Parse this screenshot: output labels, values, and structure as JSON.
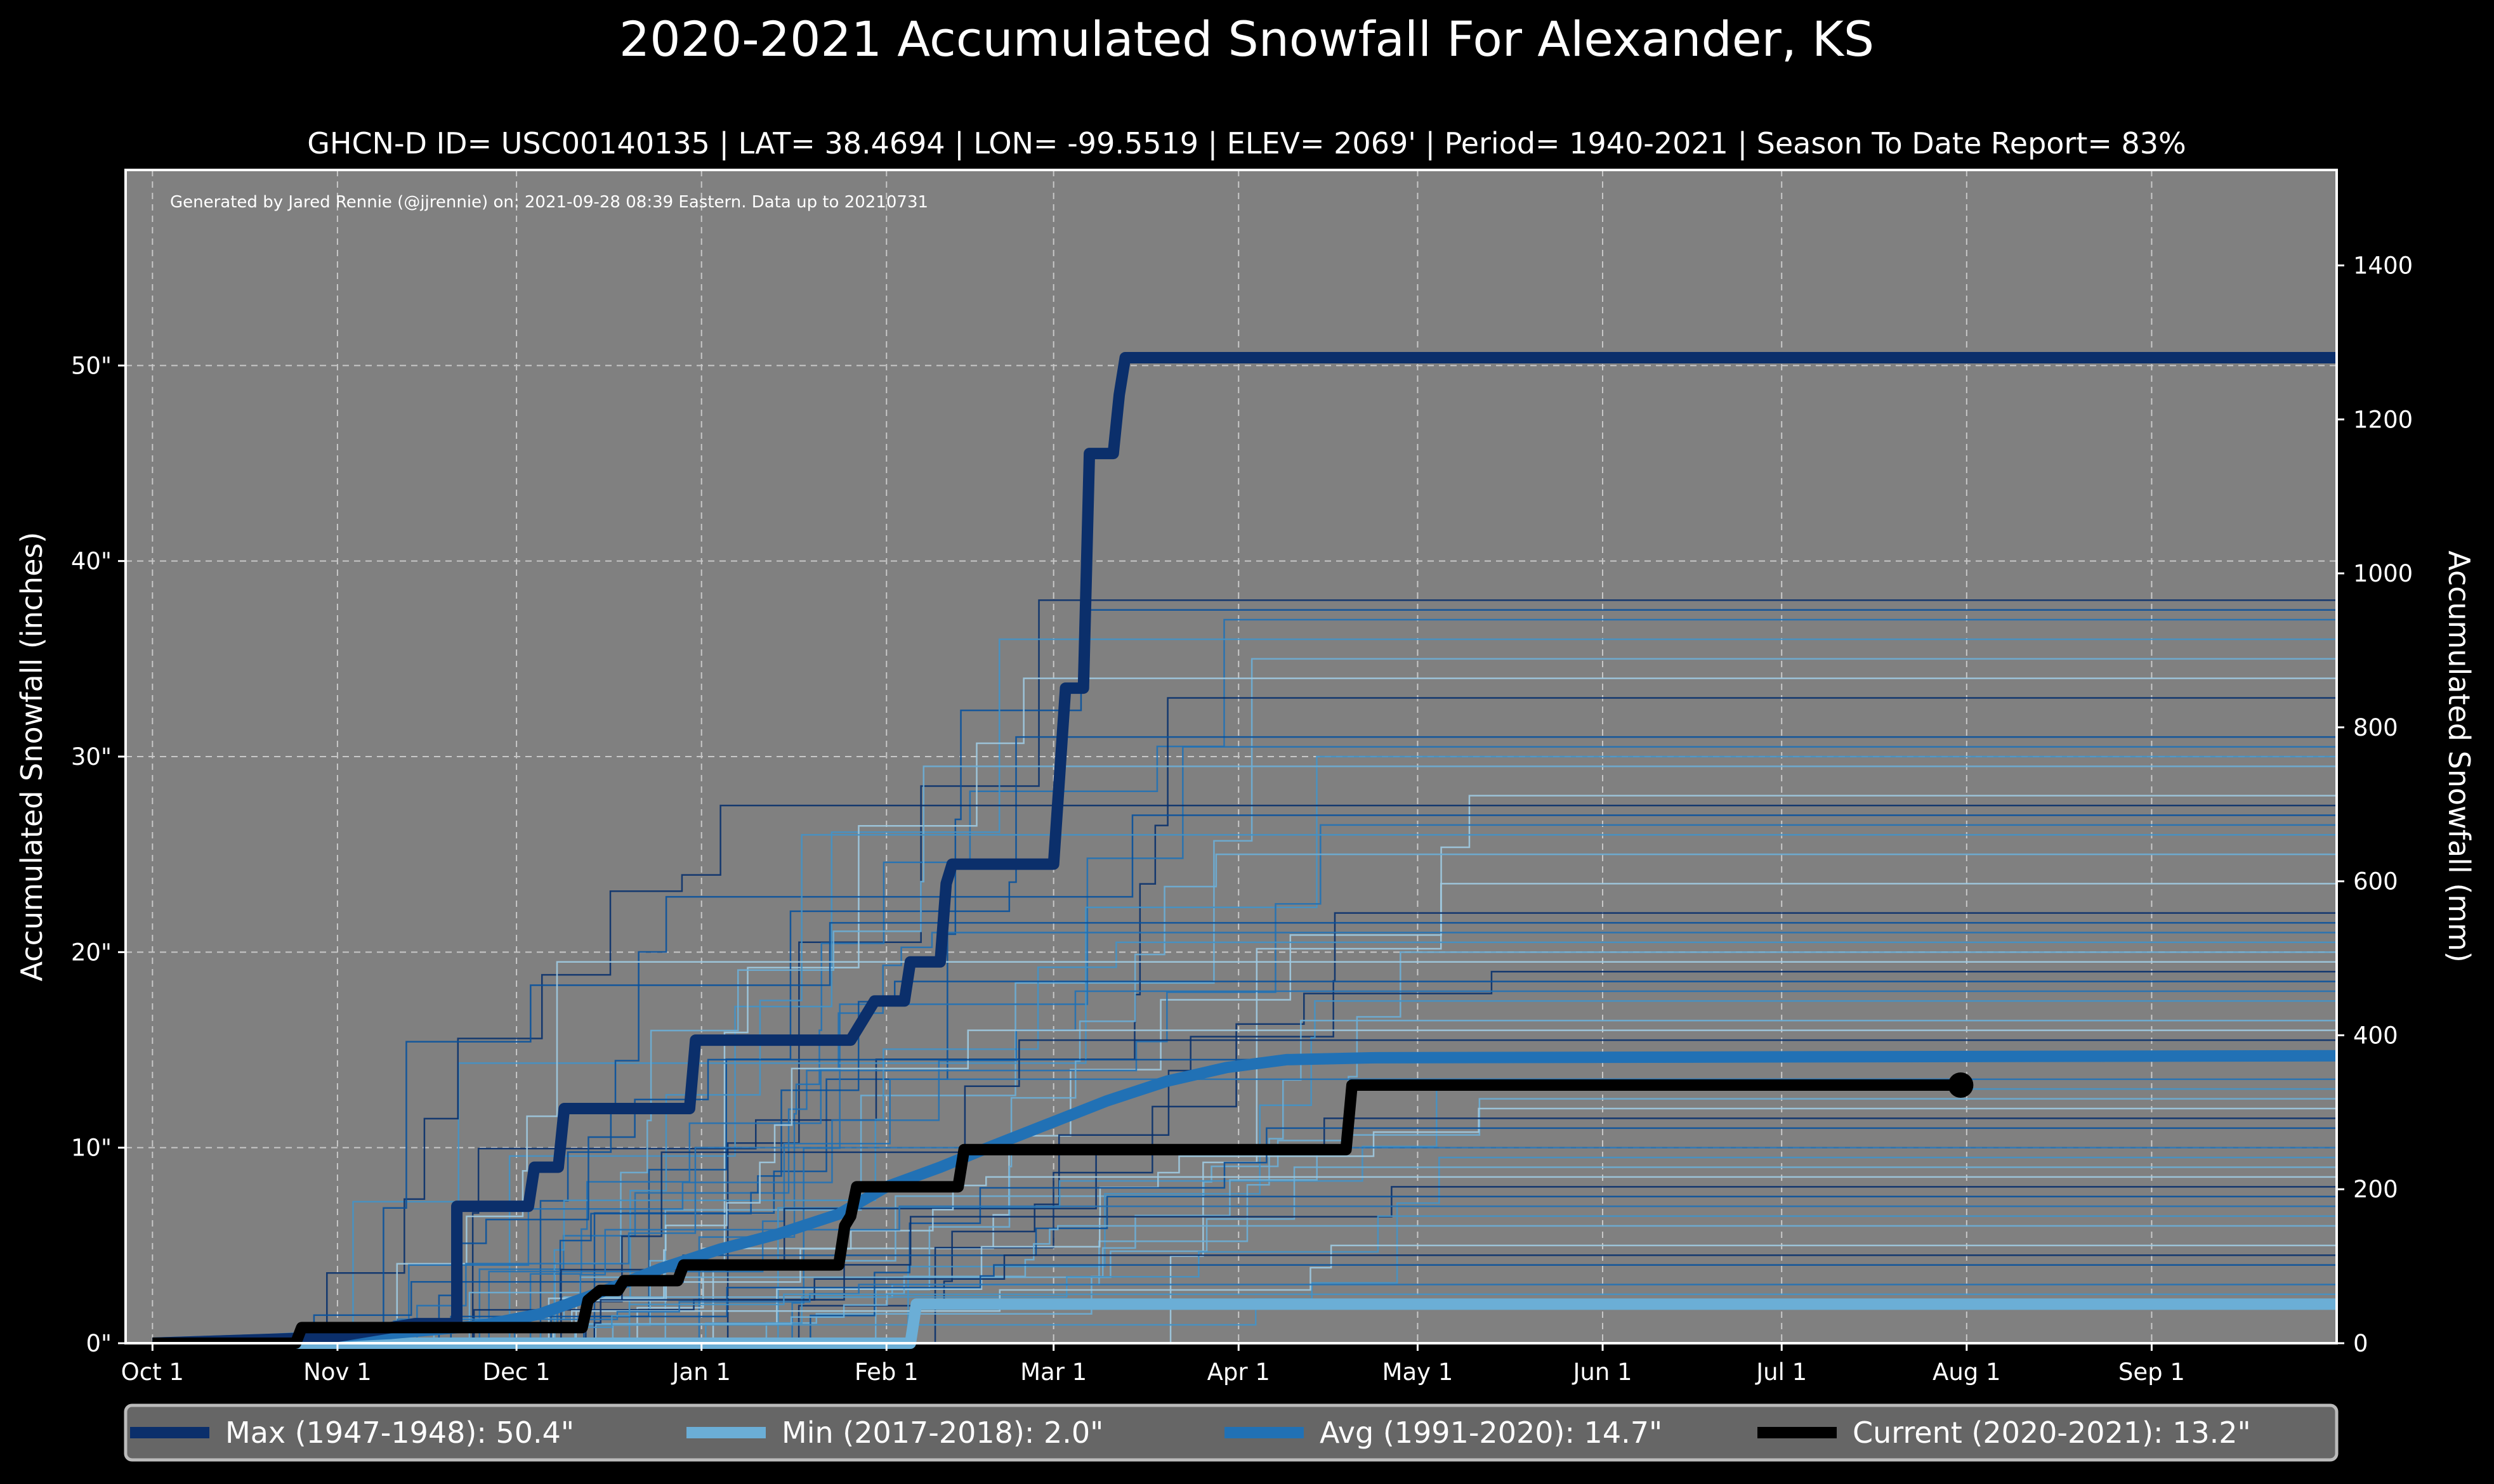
{
  "chart_data": {
    "type": "line",
    "title": "2020-2021 Accumulated Snowfall For Alexander, KS",
    "subtitle": "GHCN-D ID= USC00140135 | LAT= 38.4694 | LON= -99.5519 | ELEV= 2069' | Period= 1940-2021 | Season To Date Report= 83%",
    "annotation": "Generated by Jared Rennie (@jjrennie) on: 2021-09-28 08:39 Eastern. Data up to 20210731",
    "ylabel": "Accumulated Snowfall (inches)",
    "ylabel_right": "Accumulated Snowfall (mm)",
    "xlim_days": [
      -4.5,
      366
    ],
    "ylim": [
      0,
      60
    ],
    "ylim_right_mm": [
      0,
      1524
    ],
    "grid": true,
    "x_ticks": [
      {
        "day": 0,
        "label": "Oct 1"
      },
      {
        "day": 31,
        "label": "Nov 1"
      },
      {
        "day": 61,
        "label": "Dec 1"
      },
      {
        "day": 92,
        "label": "Jan 1"
      },
      {
        "day": 123,
        "label": "Feb 1"
      },
      {
        "day": 151,
        "label": "Mar 1"
      },
      {
        "day": 182,
        "label": "Apr 1"
      },
      {
        "day": 212,
        "label": "May 1"
      },
      {
        "day": 243,
        "label": "Jun 1"
      },
      {
        "day": 273,
        "label": "Jul 1"
      },
      {
        "day": 304,
        "label": "Aug 1"
      },
      {
        "day": 335,
        "label": "Sep 1"
      }
    ],
    "y_ticks": [
      {
        "value": 0,
        "label": "0\""
      },
      {
        "value": 10,
        "label": "10\""
      },
      {
        "value": 20,
        "label": "20\""
      },
      {
        "value": 30,
        "label": "30\""
      },
      {
        "value": 40,
        "label": "40\""
      },
      {
        "value": 50,
        "label": "50\""
      }
    ],
    "y_ticks_right": [
      {
        "value": 0,
        "label": "0"
      },
      {
        "value": 200,
        "label": "200"
      },
      {
        "value": 400,
        "label": "400"
      },
      {
        "value": 600,
        "label": "600"
      },
      {
        "value": 800,
        "label": "800"
      },
      {
        "value": 1000,
        "label": "1000"
      },
      {
        "value": 1200,
        "label": "1200"
      },
      {
        "value": 1400,
        "label": "1400"
      }
    ],
    "series": [
      {
        "name": "Max",
        "legend": "Max (1947-1948):   50.4\"",
        "color": "#0b2f6b",
        "width": 18,
        "points": [
          [
            0,
            0
          ],
          [
            30,
            0.3
          ],
          [
            44,
            1
          ],
          [
            51,
            1
          ],
          [
            51,
            7
          ],
          [
            63,
            7
          ],
          [
            64,
            9
          ],
          [
            68,
            9
          ],
          [
            69,
            12
          ],
          [
            90,
            12
          ],
          [
            91,
            15.5
          ],
          [
            117,
            15.5
          ],
          [
            119,
            16.5
          ],
          [
            121,
            17.5
          ],
          [
            126,
            17.5
          ],
          [
            127,
            19.5
          ],
          [
            132,
            19.5
          ],
          [
            133,
            23.5
          ],
          [
            134,
            24.5
          ],
          [
            151,
            24.5
          ],
          [
            152,
            29
          ],
          [
            153,
            33.5
          ],
          [
            156,
            33.5
          ],
          [
            157,
            45.5
          ],
          [
            161,
            45.5
          ],
          [
            162,
            48.5
          ],
          [
            163,
            50.4
          ],
          [
            366,
            50.4
          ]
        ]
      },
      {
        "name": "Min",
        "legend": "Min (2017-2018):    2.0\"",
        "color": "#6baed6",
        "width": 18,
        "points": [
          [
            0,
            0
          ],
          [
            127,
            0
          ],
          [
            128,
            2.0
          ],
          [
            366,
            2.0
          ]
        ]
      },
      {
        "name": "Avg",
        "legend": "Avg (1991-2020):   14.7\"",
        "color": "#2171b5",
        "width": 18,
        "points": [
          [
            0,
            0
          ],
          [
            20,
            0.2
          ],
          [
            40,
            0.5
          ],
          [
            55,
            0.9
          ],
          [
            65,
            1.5
          ],
          [
            75,
            2.6
          ],
          [
            85,
            3.8
          ],
          [
            95,
            4.8
          ],
          [
            105,
            5.6
          ],
          [
            115,
            6.6
          ],
          [
            123,
            8
          ],
          [
            132,
            9
          ],
          [
            140,
            10
          ],
          [
            150,
            11.2
          ],
          [
            160,
            12.4
          ],
          [
            170,
            13.4
          ],
          [
            180,
            14.1
          ],
          [
            190,
            14.5
          ],
          [
            205,
            14.6
          ],
          [
            366,
            14.7
          ]
        ]
      },
      {
        "name": "Current",
        "legend": "Current (2020-2021):   13.2\"",
        "color": "#000000",
        "width": 18,
        "points": [
          [
            0,
            0
          ],
          [
            24,
            0
          ],
          [
            25,
            0.8
          ],
          [
            72,
            0.8
          ],
          [
            73,
            2.2
          ],
          [
            75,
            2.7
          ],
          [
            78,
            2.7
          ],
          [
            79,
            3.2
          ],
          [
            88,
            3.2
          ],
          [
            89,
            4
          ],
          [
            115,
            4
          ],
          [
            116,
            6
          ],
          [
            117,
            6.5
          ],
          [
            118,
            8
          ],
          [
            135,
            8
          ],
          [
            136,
            9.9
          ],
          [
            200,
            9.9
          ],
          [
            201,
            13.2
          ],
          [
            303,
            13.2
          ]
        ],
        "end_marker": true
      }
    ],
    "other_seasons_final": [
      38,
      37.5,
      37,
      36,
      35,
      34,
      33,
      31,
      30.5,
      30,
      29.5,
      28,
      27.5,
      27,
      26.5,
      26,
      25,
      23.5,
      22,
      21.5,
      21,
      20.5,
      20,
      19.5,
      19,
      18.5,
      18,
      17.5,
      16.5,
      16,
      15.5,
      14.5,
      13.5,
      13,
      12.5,
      12,
      11.5,
      11,
      10,
      9.5,
      9,
      8.5,
      8,
      7.5,
      7,
      6.5,
      6,
      5,
      4.5,
      4,
      3,
      2.5
    ],
    "other_seasons_colors": [
      "#08306b",
      "#08519c",
      "#2171b5",
      "#4292c6",
      "#6baed6",
      "#9ecae1"
    ],
    "legend_placement": "bottom"
  }
}
